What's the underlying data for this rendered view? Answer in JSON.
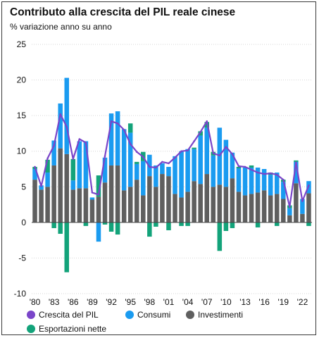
{
  "chart_data": {
    "type": "bar",
    "title": "Contributo alla crescita del PIL reale cinese",
    "subtitle": "% variazione anno su anno",
    "ylim": [
      -10,
      25
    ],
    "yticks": [
      -10,
      -5,
      0,
      5,
      10,
      15,
      20,
      25
    ],
    "years": [
      1980,
      1981,
      1982,
      1983,
      1984,
      1985,
      1986,
      1987,
      1988,
      1989,
      1990,
      1991,
      1992,
      1993,
      1994,
      1995,
      1996,
      1997,
      1998,
      1999,
      2000,
      2001,
      2002,
      2003,
      2004,
      2005,
      2006,
      2007,
      2008,
      2009,
      2010,
      2011,
      2012,
      2013,
      2014,
      2015,
      2016,
      2017,
      2018,
      2019,
      2020,
      2021,
      2022,
      2023
    ],
    "x_tick_labels": [
      "'80",
      "'83",
      "'86",
      "'89",
      "'92",
      "'95",
      "'98",
      "'01",
      "'04",
      "'07",
      "'10",
      "'13",
      "'16",
      "'19",
      "'22"
    ],
    "x_tick_years": [
      1980,
      1983,
      1986,
      1989,
      1992,
      1995,
      1998,
      2001,
      2004,
      2007,
      2010,
      2013,
      2016,
      2019,
      2022
    ],
    "grid": true,
    "legend_position": "bottom",
    "series": [
      {
        "name": "Investimenti",
        "color": "#5f5f5f",
        "type": "bar",
        "values": [
          6.0,
          4.6,
          5.0,
          8.0,
          10.4,
          9.6,
          4.6,
          4.8,
          4.8,
          3.2,
          3.6,
          5.6,
          8.0,
          8.0,
          4.5,
          5.0,
          6.0,
          3.8,
          6.5,
          5.0,
          6.8,
          6.5,
          4.0,
          3.5,
          4.3,
          5.8,
          5.4,
          6.8,
          5.0,
          5.3,
          5.0,
          6.2,
          4.3,
          3.8,
          4.0,
          4.2,
          4.5,
          3.8,
          4.0,
          3.3,
          1.0,
          5.5,
          1.2,
          4.1
        ]
      },
      {
        "name": "Consumi",
        "color": "#1a9bf0",
        "type": "bar",
        "values": [
          1.5,
          0.6,
          2.0,
          3.5,
          6.3,
          10.7,
          1.3,
          6.6,
          6.6,
          0.3,
          -2.7,
          3.5,
          7.3,
          7.6,
          8.6,
          7.6,
          2.2,
          4.8,
          3.0,
          3.0,
          1.5,
          1.3,
          5.3,
          6.5,
          6.0,
          4.5,
          6.8,
          6.5,
          4.4,
          8.0,
          6.6,
          3.6,
          3.3,
          3.9,
          3.7,
          3.5,
          3.0,
          2.9,
          3.0,
          2.4,
          1.0,
          3.0,
          2.1,
          1.7
        ]
      },
      {
        "name": "Esportazioni nette",
        "color": "#13a37a",
        "type": "bar",
        "values": [
          0.3,
          0.0,
          1.8,
          -0.8,
          -1.6,
          -7.0,
          3.0,
          0.0,
          -0.5,
          0.0,
          3.0,
          -0.3,
          -1.3,
          -1.7,
          0.0,
          1.3,
          0.3,
          1.3,
          -2.0,
          -0.6,
          0.0,
          -1.1,
          0.0,
          -0.5,
          -0.5,
          0.2,
          0.6,
          0.8,
          0.5,
          -4.0,
          -1.2,
          -0.8,
          0.2,
          0.0,
          0.3,
          -0.7,
          0.0,
          0.3,
          -0.5,
          0.3,
          0.4,
          0.2,
          0.0,
          -0.5
        ]
      },
      {
        "name": "Crescita del PIL",
        "color": "#7a45c9",
        "type": "line",
        "values": [
          7.8,
          5.1,
          9.0,
          10.8,
          15.2,
          13.4,
          8.9,
          11.7,
          11.2,
          4.2,
          3.9,
          9.3,
          14.2,
          13.9,
          13.0,
          11.0,
          9.9,
          9.2,
          7.8,
          7.7,
          8.5,
          8.3,
          9.1,
          10.0,
          10.1,
          11.4,
          12.7,
          14.2,
          9.7,
          9.4,
          10.6,
          9.6,
          7.9,
          7.8,
          7.4,
          7.0,
          6.8,
          6.9,
          6.7,
          6.0,
          2.2,
          8.4,
          3.0,
          5.2
        ]
      }
    ]
  },
  "legend": [
    {
      "label": "Crescita del PIL",
      "color": "#7a45c9"
    },
    {
      "label": "Consumi",
      "color": "#1a9bf0"
    },
    {
      "label": "Investimenti",
      "color": "#5f5f5f"
    },
    {
      "label": "Esportazioni nette",
      "color": "#13a37a"
    }
  ]
}
